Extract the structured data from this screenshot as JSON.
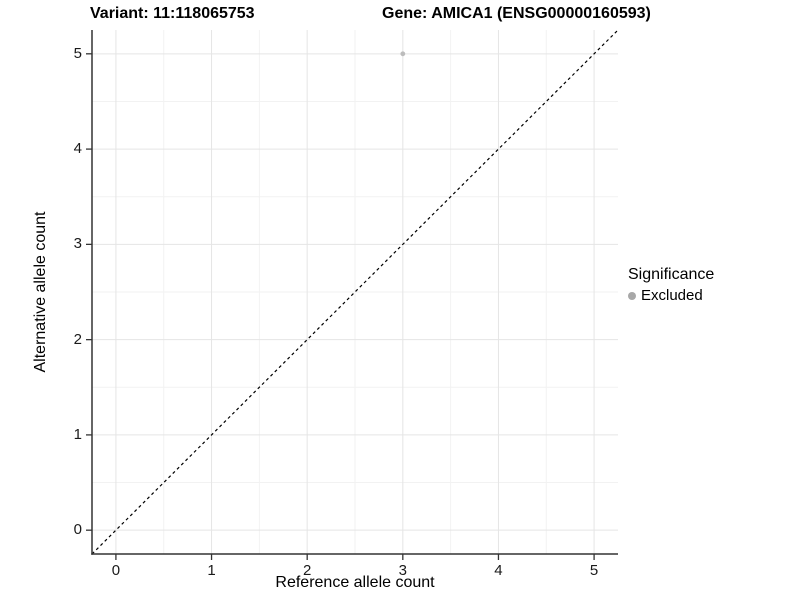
{
  "chart_data": {
    "type": "scatter",
    "title_left": "Variant: 11:118065753",
    "title_right": "Gene: AMICA1 (ENSG00000160593)",
    "xlabel": "Reference allele count",
    "ylabel": "Alternative allele count",
    "xlim": [
      -0.25,
      5.25
    ],
    "ylim": [
      -0.25,
      5.25
    ],
    "x_ticks": [
      0,
      1,
      2,
      3,
      4,
      5
    ],
    "y_ticks": [
      0,
      1,
      2,
      3,
      4,
      5
    ],
    "x_minor": [
      0.5,
      1.5,
      2.5,
      3.5,
      4.5
    ],
    "y_minor": [
      0.5,
      1.5,
      2.5,
      3.5,
      4.5
    ],
    "grid": true,
    "points": [
      {
        "x": 3,
        "y": 5,
        "series": "Excluded"
      }
    ],
    "reference_line": {
      "kind": "diagonal-identity",
      "style": "dashed"
    },
    "legend": {
      "title": "Significance",
      "position": "right",
      "entries": [
        {
          "label": "Excluded",
          "color": "#a8a8a8"
        }
      ]
    },
    "colors": {
      "background": "#ffffff",
      "grid_major": "#e5e5e5",
      "grid_minor": "#f2f2f2",
      "axis_line": "#333333",
      "diagonal_line": "#000000",
      "point": "#bcbcbc",
      "text": "#000000"
    }
  }
}
